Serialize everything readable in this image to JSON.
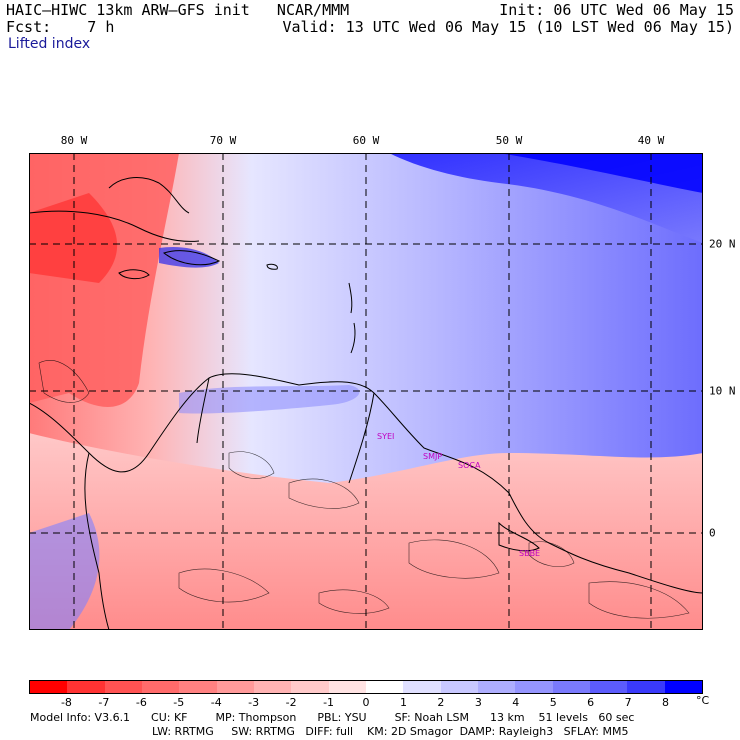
{
  "header": {
    "model_line": "HAIC–HIWC 13km ARW–GFS init   NCAR/MMM",
    "forecast_line": "Fcst:    7 h",
    "init_line": "Init: 06 UTC Wed 06 May 15",
    "valid_line": "Valid: 13 UTC Wed 06 May 15 (10 LST Wed 06 May 15)",
    "field_name": "Lifted index"
  },
  "map": {
    "longitude_labels": [
      "80 W",
      "70 W",
      "60 W",
      "50 W",
      "40 W"
    ],
    "latitude_labels": [
      "20 N",
      "10 N",
      "0"
    ],
    "station_labels": [
      "SYEI",
      "SMJP",
      "SOCA",
      "SBBE"
    ]
  },
  "colorbar": {
    "tick_labels": [
      "-8",
      "-7",
      "-6",
      "-5",
      "-4",
      "-3",
      "-2",
      "-1",
      "0",
      "1",
      "2",
      "3",
      "4",
      "5",
      "6",
      "7",
      "8"
    ],
    "unit": "°C",
    "colors": [
      "#ff0000",
      "#ff3333",
      "#ff5353",
      "#ff6b6b",
      "#ff8181",
      "#ff9a9a",
      "#ffb3b3",
      "#ffcaca",
      "#ffe3e3",
      "#ffffff",
      "#e0e0ff",
      "#c8c8ff",
      "#aeaefe",
      "#9595fe",
      "#7a7afd",
      "#5c5cfc",
      "#3a3afb",
      "#0000ff"
    ]
  },
  "model_info": {
    "line1": "Model Info: V3.6.1      CU: KF        MP: Thompson      PBL: YSU        SF: Noah LSM      13 km    51 levels   60 sec",
    "line2": "LW: RRTMG     SW: RRTMG   DIFF: full    KM: 2D Smagor  DAMP: Rayleigh3   SFLAY: MM5"
  }
}
